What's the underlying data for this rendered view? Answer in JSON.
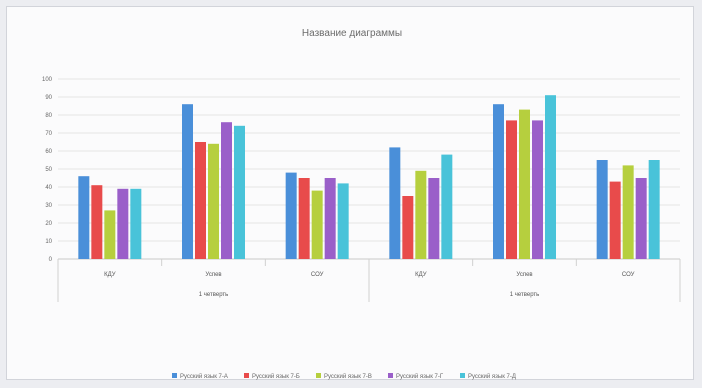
{
  "chart_data": {
    "type": "bar",
    "title": "Название диаграммы",
    "ylim": [
      0,
      100
    ],
    "yticks": [
      0,
      10,
      20,
      30,
      40,
      50,
      60,
      70,
      80,
      90,
      100
    ],
    "grid": true,
    "legend_position": "bottom",
    "groups": [
      {
        "label": "1 четверть",
        "categories": [
          "КДУ",
          "Успев",
          "СОУ"
        ]
      },
      {
        "label": "1 четверть",
        "categories": [
          "КДУ",
          "Успев",
          "СОУ"
        ]
      }
    ],
    "series": [
      {
        "name": "Русский язык 7-А",
        "color": "#4a8fd9",
        "values": [
          46,
          86,
          48,
          62,
          86,
          55
        ]
      },
      {
        "name": "Русский язык 7-Б",
        "color": "#e84b4b",
        "values": [
          41,
          65,
          45,
          35,
          77,
          43
        ]
      },
      {
        "name": "Русский язык 7-В",
        "color": "#b6cf3e",
        "values": [
          27,
          64,
          38,
          49,
          83,
          52
        ]
      },
      {
        "name": "Русский язык 7-Г",
        "color": "#9a5fc9",
        "values": [
          39,
          76,
          45,
          45,
          77,
          45
        ]
      },
      {
        "name": "Русский язык 7-Д",
        "color": "#49c3d9",
        "values": [
          39,
          74,
          42,
          58,
          91,
          55
        ]
      }
    ]
  }
}
